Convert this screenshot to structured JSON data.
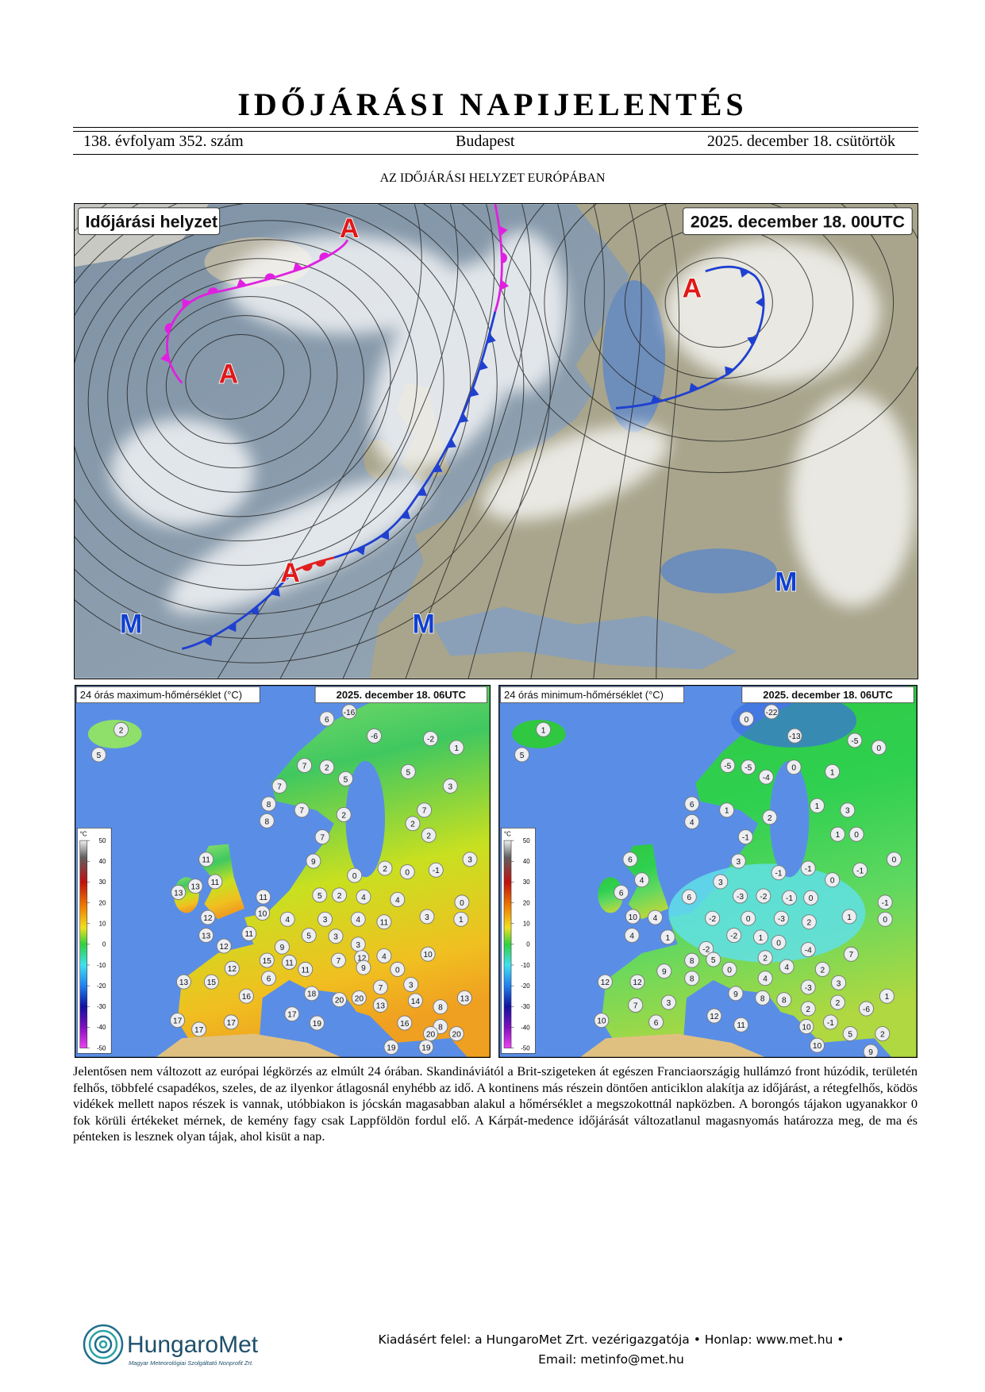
{
  "header": {
    "title": "IDŐJÁRÁSI NAPIJELENTÉS",
    "volume": "138. évfolyam 352. szám",
    "city": "Budapest",
    "date": "2025. december 18. csütörtök"
  },
  "section_title": "AZ IDŐJÁRÁSI HELYZET EURÓPÁBAN",
  "main_map": {
    "label": "Időjárási helyzet",
    "timestamp": "2025. december 18. 00UTC",
    "pressure_centers": [
      "A",
      "A",
      "A",
      "A",
      "M",
      "M",
      "M"
    ]
  },
  "max_map": {
    "label": "24 órás maximum-hőmérséklet (°C)",
    "timestamp": "2025. december 18. 06UTC",
    "colorbar_unit": "°C",
    "colorbar_ticks": [
      50,
      40,
      30,
      20,
      10,
      0,
      -10,
      -20,
      -30,
      -40,
      -50
    ],
    "stations": [
      2,
      5,
      6,
      -16,
      -6,
      -2,
      1,
      7,
      2,
      5,
      5,
      7,
      3,
      8,
      7,
      2,
      7,
      8,
      2,
      7,
      2,
      11,
      9,
      3,
      13,
      11,
      0,
      2,
      0,
      -1,
      13,
      5,
      2,
      4,
      4,
      0,
      11,
      10,
      12,
      4,
      3,
      4,
      11,
      3,
      1,
      13,
      11,
      5,
      3,
      12,
      9,
      3,
      15,
      11,
      7,
      12,
      4,
      10,
      12,
      11,
      9,
      0,
      13,
      15,
      6,
      7,
      3,
      18,
      20,
      20,
      14,
      13,
      16,
      17,
      13,
      8,
      16,
      8,
      17,
      17,
      19,
      20,
      20,
      17,
      19,
      19
    ]
  },
  "min_map": {
    "label": "24 órás minimum-hőmérséklet (°C)",
    "timestamp": "2025. december 18. 06UTC",
    "colorbar_unit": "°C",
    "colorbar_ticks": [
      50,
      40,
      30,
      20,
      10,
      0,
      -10,
      -20,
      -30,
      -40,
      -50
    ],
    "stations": [
      1,
      5,
      0,
      -22,
      -13,
      -5,
      0,
      -5,
      -5,
      0,
      1,
      -4,
      6,
      1,
      2,
      4,
      1,
      3,
      1,
      0,
      -1,
      6,
      3,
      0,
      4,
      6,
      3,
      -1,
      -1,
      0,
      -1,
      6,
      -3,
      -2,
      -1,
      0,
      -1,
      10,
      4,
      -2,
      0,
      -3,
      2,
      1,
      0,
      4,
      1,
      -2,
      1,
      0,
      -4,
      -2,
      5,
      8,
      2,
      7,
      12,
      12,
      9,
      0,
      4,
      4,
      2,
      8,
      -3,
      3,
      9,
      8,
      8,
      2,
      -6,
      1,
      7,
      3,
      12,
      2,
      10,
      6,
      11,
      10,
      -1,
      5,
      2,
      10,
      9
    ]
  },
  "body_text": "Jelentősen nem változott az európai légkörzés az elmúlt 24 órában. Skandináviától a Brit-szigeteken át egészen Franciaországig hullámzó front húzódik, területén felhős, többfelé csapadékos, szeles, de az ilyenkor átlagosnál enyhébb az idő. A kontinens más részein döntően anticiklon alakítja az időjárást, a rétegfelhős, ködös vidékek mellett napos részek is vannak, utóbbiakon is jócskán magasabban alakul a hőmérséklet a megszokottnál napközben. A borongós tájakon ugyanakkor 0 fok körüli értékeket mérnek, de kemény fagy csak Lappföldön fordul elő. A Kárpát-medence időjárását változatlanul magasnyomás határozza meg, de ma és pénteken is lesznek olyan tájak, ahol kisüt a nap.",
  "footer": {
    "logo_name": "HungaroMet",
    "logo_subtitle": "Magyar Meteorológiai Szolgáltató Nonprofit Zrt.",
    "line1": "Kiadásért felel: a HungaroMet Zrt. vezérigazgatója • Honlap: www.met.hu •",
    "line2": "Email: metinfo@met.hu"
  }
}
